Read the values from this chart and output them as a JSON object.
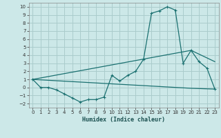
{
  "xlabel": "Humidex (Indice chaleur)",
  "background_color": "#cce8e8",
  "grid_color": "#aacccc",
  "line_color": "#1a7070",
  "xlim": [
    -0.5,
    23.5
  ],
  "ylim": [
    -2.5,
    10.5
  ],
  "xticks": [
    0,
    1,
    2,
    3,
    4,
    5,
    6,
    7,
    8,
    9,
    10,
    11,
    12,
    13,
    14,
    15,
    16,
    17,
    18,
    19,
    20,
    21,
    22,
    23
  ],
  "yticks": [
    -2,
    -1,
    0,
    1,
    2,
    3,
    4,
    5,
    6,
    7,
    8,
    9,
    10
  ],
  "line1_x": [
    0,
    1,
    2,
    3,
    4,
    5,
    6,
    7,
    8,
    9,
    10,
    11,
    12,
    13,
    14,
    15,
    16,
    17,
    18,
    19,
    20,
    21,
    22,
    23
  ],
  "line1_y": [
    1.0,
    0.0,
    0.0,
    -0.3,
    -0.8,
    -1.3,
    -1.8,
    -1.5,
    -1.5,
    -1.2,
    1.5,
    0.8,
    1.5,
    2.0,
    3.5,
    9.2,
    9.5,
    10.0,
    9.6,
    3.0,
    4.6,
    3.2,
    2.4,
    -0.2
  ],
  "line2_x": [
    0,
    20,
    23
  ],
  "line2_y": [
    1.0,
    -0.1,
    -0.2
  ],
  "line3_x": [
    0,
    20,
    23
  ],
  "line3_y": [
    1.0,
    4.6,
    3.2
  ]
}
